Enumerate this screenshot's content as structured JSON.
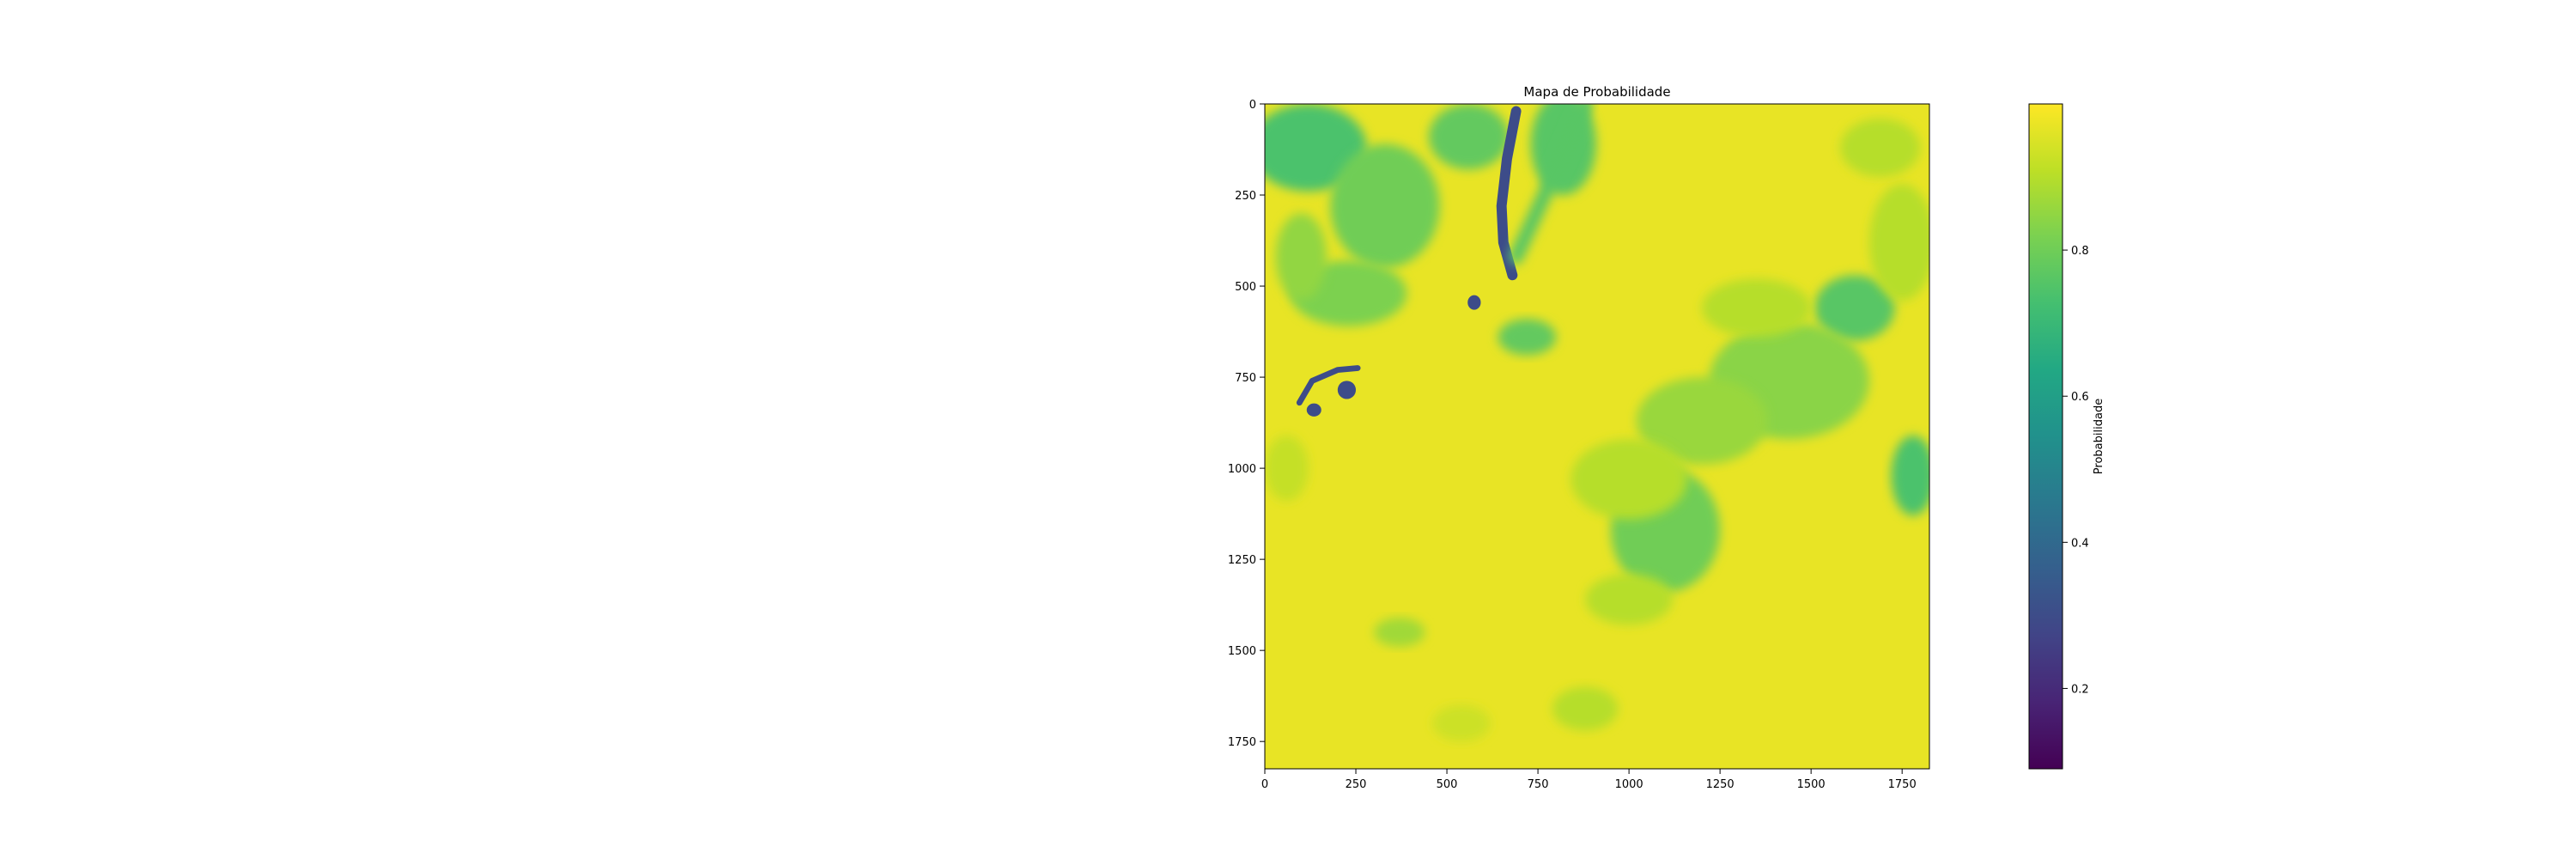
{
  "chart_data": {
    "type": "heatmap",
    "title": "Mapa de Probabilidade",
    "x_ticks": [
      0,
      250,
      500,
      750,
      1000,
      1250,
      1500,
      1750
    ],
    "y_ticks": [
      0,
      250,
      500,
      750,
      1000,
      1250,
      1500,
      1750
    ],
    "xlim": [
      0,
      1825
    ],
    "ylim": [
      1825,
      0
    ],
    "y_axis_inverted": true,
    "grid": false,
    "colormap": "viridis",
    "colorbar": {
      "label": "Probabilidade",
      "range": [
        0.09,
        1.0
      ],
      "ticks": [
        0.2,
        0.4,
        0.6,
        0.8
      ]
    },
    "dominant_value": 0.97,
    "regions": [
      {
        "kind": "blob",
        "x": 120,
        "y": 120,
        "rx": 160,
        "ry": 120,
        "value": 0.74
      },
      {
        "kind": "blob",
        "x": 330,
        "y": 280,
        "rx": 150,
        "ry": 170,
        "value": 0.8
      },
      {
        "kind": "blob",
        "x": 560,
        "y": 90,
        "rx": 110,
        "ry": 90,
        "value": 0.78
      },
      {
        "kind": "blob",
        "x": 230,
        "y": 520,
        "rx": 160,
        "ry": 90,
        "value": 0.82
      },
      {
        "kind": "blob",
        "x": 100,
        "y": 420,
        "rx": 70,
        "ry": 120,
        "value": 0.85
      },
      {
        "kind": "blob",
        "x": 820,
        "y": 110,
        "rx": 90,
        "ry": 140,
        "value": 0.76
      },
      {
        "kind": "blob",
        "x": 1620,
        "y": 560,
        "rx": 110,
        "ry": 90,
        "value": 0.76
      },
      {
        "kind": "blob",
        "x": 1750,
        "y": 380,
        "rx": 90,
        "ry": 160,
        "value": 0.9
      },
      {
        "kind": "blob",
        "x": 1440,
        "y": 760,
        "rx": 220,
        "ry": 160,
        "value": 0.84
      },
      {
        "kind": "blob",
        "x": 1200,
        "y": 870,
        "rx": 180,
        "ry": 120,
        "value": 0.86
      },
      {
        "kind": "blob",
        "x": 1100,
        "y": 1170,
        "rx": 150,
        "ry": 170,
        "value": 0.8
      },
      {
        "kind": "blob",
        "x": 1000,
        "y": 1030,
        "rx": 160,
        "ry": 110,
        "value": 0.9
      },
      {
        "kind": "blob",
        "x": 1780,
        "y": 1020,
        "rx": 60,
        "ry": 110,
        "value": 0.74
      },
      {
        "kind": "blob",
        "x": 1000,
        "y": 1360,
        "rx": 120,
        "ry": 70,
        "value": 0.9
      },
      {
        "kind": "blob",
        "x": 370,
        "y": 1450,
        "rx": 70,
        "ry": 40,
        "value": 0.87
      },
      {
        "kind": "blob",
        "x": 880,
        "y": 1660,
        "rx": 90,
        "ry": 60,
        "value": 0.9
      },
      {
        "kind": "blob",
        "x": 540,
        "y": 1700,
        "rx": 80,
        "ry": 50,
        "value": 0.93
      },
      {
        "kind": "blob",
        "x": 60,
        "y": 1000,
        "rx": 60,
        "ry": 90,
        "value": 0.92
      },
      {
        "kind": "blob",
        "x": 1350,
        "y": 560,
        "rx": 150,
        "ry": 80,
        "value": 0.9
      },
      {
        "kind": "blob",
        "x": 1690,
        "y": 120,
        "rx": 110,
        "ry": 80,
        "value": 0.9
      },
      {
        "kind": "blob",
        "x": 720,
        "y": 640,
        "rx": 80,
        "ry": 50,
        "value": 0.78
      },
      {
        "kind": "line",
        "points": [
          [
            690,
            20
          ],
          [
            665,
            150
          ],
          [
            650,
            280
          ],
          [
            655,
            380
          ],
          [
            680,
            470
          ]
        ],
        "width": 28,
        "value": 0.3
      },
      {
        "kind": "line",
        "points": [
          [
            95,
            820
          ],
          [
            130,
            760
          ],
          [
            200,
            730
          ],
          [
            255,
            725
          ]
        ],
        "width": 16,
        "value": 0.3
      },
      {
        "kind": "blob",
        "x": 575,
        "y": 545,
        "rx": 18,
        "ry": 20,
        "value": 0.3
      },
      {
        "kind": "blob",
        "x": 225,
        "y": 785,
        "rx": 25,
        "ry": 25,
        "value": 0.3
      },
      {
        "kind": "blob",
        "x": 135,
        "y": 840,
        "rx": 20,
        "ry": 18,
        "value": 0.3
      },
      {
        "kind": "line",
        "points": [
          [
            880,
            0
          ],
          [
            800,
            180
          ],
          [
            690,
            420
          ]
        ],
        "width": 40,
        "value": 0.76
      }
    ]
  }
}
